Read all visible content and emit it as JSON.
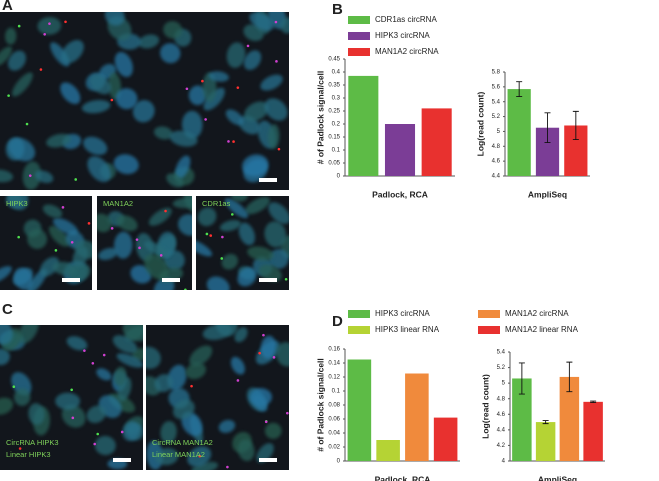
{
  "panel_labels": [
    "A",
    "B",
    "C",
    "D"
  ],
  "images": {
    "a_insets": [
      "HIPK3",
      "MAN1A2",
      "CDR1as"
    ],
    "c_captions": [
      [
        "CircRNA HIPK3",
        "Linear HIPK3"
      ],
      [
        "CircRNA MAN1A2",
        "Linear MAN1A2"
      ]
    ]
  },
  "chart_data": [
    {
      "type": "bar",
      "ylabel": "# of Padlock signal/cell",
      "xlabel": "Padlock, RCA",
      "ylim": [
        0,
        0.45
      ],
      "yticks": [
        0,
        0.05,
        0.1,
        0.15,
        0.2,
        0.25,
        0.3,
        0.35,
        0.4,
        0.45
      ],
      "series": [
        {
          "name": "CDR1as circRNA",
          "color": "#5dbb46",
          "values": [
            0.385
          ]
        },
        {
          "name": "HIPK3 circRNA",
          "color": "#7b3d96",
          "values": [
            0.2
          ]
        },
        {
          "name": "MAN1A2 circRNA",
          "color": "#e8312f",
          "values": [
            0.26
          ]
        }
      ]
    },
    {
      "type": "bar",
      "ylabel": "Log(read count)",
      "xlabel": "AmpliSeq",
      "ylim": [
        4.4,
        5.8
      ],
      "yticks": [
        4.4,
        4.6,
        4.8,
        5,
        5.2,
        5.4,
        5.6,
        5.8
      ],
      "series": [
        {
          "color": "#5dbb46",
          "values": [
            5.57
          ],
          "errors": [
            0.1
          ]
        },
        {
          "color": "#7b3d96",
          "values": [
            5.05
          ],
          "errors": [
            0.2
          ]
        },
        {
          "color": "#e8312f",
          "values": [
            5.08
          ],
          "errors": [
            0.19
          ]
        }
      ]
    },
    {
      "type": "bar",
      "ylabel": "# of Padlock signal/cell",
      "xlabel": "Padlock, RCA",
      "ylim": [
        0,
        0.16
      ],
      "yticks": [
        0,
        0.02,
        0.04,
        0.06,
        0.08,
        0.1,
        0.12,
        0.14,
        0.16
      ],
      "series": [
        {
          "name": "HIPK3 circRNA",
          "color": "#5dbb46",
          "values": [
            0.145
          ]
        },
        {
          "name": "HIPK3 linear RNA",
          "color": "#b5d334",
          "values": [
            0.03
          ]
        },
        {
          "name": "MAN1A2 circRNA",
          "color": "#f08a3c",
          "values": [
            0.125
          ]
        },
        {
          "name": "MAN1A2 linear RNA",
          "color": "#e8312f",
          "values": [
            0.062
          ]
        }
      ]
    },
    {
      "type": "bar",
      "ylabel": "Log(read count)",
      "xlabel": "AmpliSeq",
      "ylim": [
        4,
        5.4
      ],
      "yticks": [
        4,
        4.2,
        4.4,
        4.6,
        4.8,
        5,
        5.2,
        5.4
      ],
      "series": [
        {
          "color": "#5dbb46",
          "values": [
            5.06
          ],
          "errors": [
            0.2
          ]
        },
        {
          "color": "#b5d334",
          "values": [
            4.5
          ],
          "errors": [
            0.02
          ]
        },
        {
          "color": "#f08a3c",
          "values": [
            5.08
          ],
          "errors": [
            0.19
          ]
        },
        {
          "color": "#e8312f",
          "values": [
            4.76
          ],
          "errors": [
            0.01
          ]
        }
      ]
    }
  ]
}
